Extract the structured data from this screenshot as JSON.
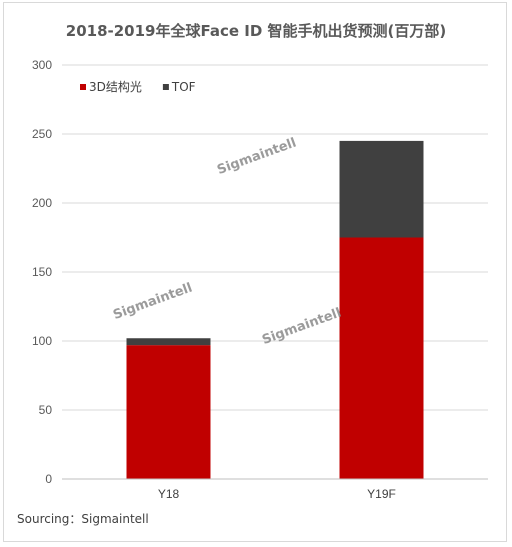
{
  "chart_data": {
    "type": "bar",
    "stacked": true,
    "title": "2018-2019年全球Face ID 智能手机出货预测(百万部)",
    "categories": [
      "Y18",
      "Y19F"
    ],
    "series": [
      {
        "name": "3D结构光",
        "values": [
          97,
          175
        ],
        "color": "#c00000"
      },
      {
        "name": "TOF",
        "values": [
          5,
          70
        ],
        "color": "#404040"
      }
    ],
    "ylim": [
      0,
      300
    ],
    "yticks": [
      0,
      50,
      100,
      150,
      200,
      250,
      300
    ],
    "grid": true,
    "legend": "top-left"
  },
  "watermarks": [
    "Sigmaintell",
    "Sigmaintell",
    "Sigmaintell"
  ],
  "source": "Sourcing：Sigmaintell"
}
